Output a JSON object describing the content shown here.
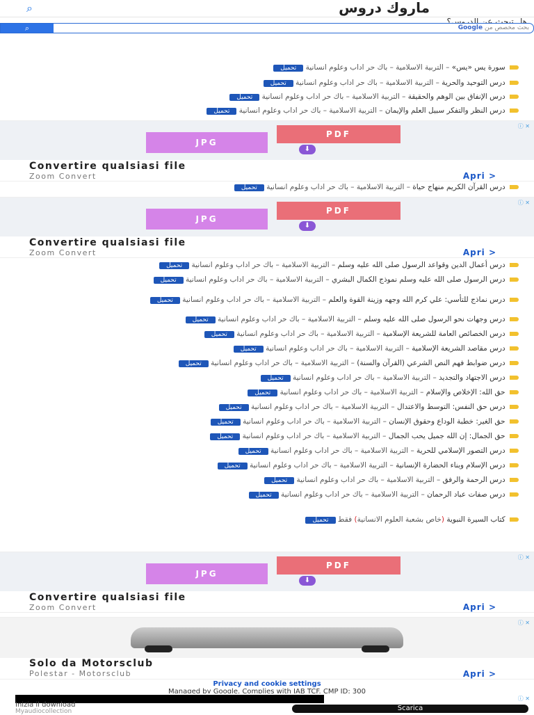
{
  "header": {
    "site_title": "ماروك دروس",
    "question": "هل تبحث عن الدروس؟",
    "search_placeholder": "بحث مخصص من",
    "search_brand": "Google",
    "search_button_icon": "search-icon"
  },
  "lessons_a": [
    {
      "title": "سورة يس «يس»",
      "meta": "– التربية الاسلامية – باك حر اداب وعلوم انسانية",
      "dl": "تحميل"
    },
    {
      "title": "درس التوحيد والحرية",
      "meta": "– التربية الاسلامية – باك حر اداب وعلوم انسانية",
      "dl": "تحميل"
    },
    {
      "title": "درس الإنفاق بين الوهم والحقيقة",
      "meta": "– التربية الاسلامية – باك حر اداب وعلوم انسانية",
      "dl": "تحميل"
    },
    {
      "title": "درس النظر والتفكر سبيل العلم والإيمان",
      "meta": "– التربية الاسلامية – باك حر اداب وعلوم انسانية",
      "dl": "تحميل"
    }
  ],
  "lesson_b": {
    "title": "درس القرآن الكريم منهاج حياة",
    "meta": "– التربية الاسلامية – باك حر اداب وعلوم انسانية",
    "dl": "تحميل"
  },
  "lessons_c": [
    {
      "title": "درس أعمال الدين وقواعد الرسول صلى الله عليه وسلم",
      "meta": "– التربية الاسلامية – باك حر اداب وعلوم انسانية",
      "dl": "تحميل"
    },
    {
      "title": "درس الرسول صلى الله عليه وسلم نموذج الكمال البشري",
      "meta": "– التربية الاسلامية – باك حر اداب وعلوم انسانية",
      "dl": "تحميل"
    },
    {
      "title": "درس نماذج للتأسي: علي كرم الله وجهه وزينة القوة والعلم",
      "meta": "– التربية الاسلامية – باك حر اداب وعلوم انسانية",
      "dl": "تحميل"
    },
    {
      "title": "درس وجهات نحو الرسول صلى الله عليه وسلم",
      "meta": "– التربية الاسلامية – باك حر اداب وعلوم انسانية",
      "dl": "تحميل"
    },
    {
      "title": "درس الخصائص العامة للشريعة الإسلامية",
      "meta": "– التربية الاسلامية – باك حر اداب وعلوم انسانية",
      "dl": "تحميل"
    },
    {
      "title": "درس مقاصد الشريعة الإسلامية",
      "meta": "– التربية الاسلامية – باك حر اداب وعلوم انسانية",
      "dl": "تحميل"
    },
    {
      "title": "درس ضوابط فهم النص الشرعي (القرآن والسنة)",
      "meta": "– التربية الاسلامية – باك حر اداب وعلوم انسانية",
      "dl": "تحميل"
    },
    {
      "title": "درس الاجتهاد والتجديد",
      "meta": "– التربية الاسلامية – باك حر اداب وعلوم انسانية",
      "dl": "تحميل"
    },
    {
      "title": "حق الله: الإخلاص والإسلام",
      "meta": "– التربية الاسلامية – باك حر اداب وعلوم انسانية",
      "dl": "تحميل"
    },
    {
      "title": "درس حق النفس: التوسط والاعتدال",
      "meta": "– التربية الاسلامية – باك حر اداب وعلوم انسانية",
      "dl": "تحميل"
    },
    {
      "title": "حق الغير: خطبة الوداع وحقوق الإنسان",
      "meta": "– التربية الاسلامية – باك حر اداب وعلوم انسانية",
      "dl": "تحميل"
    },
    {
      "title": "حق الجمال: إن الله جميل يحب الجمال",
      "meta": "– التربية الاسلامية – باك حر اداب وعلوم انسانية",
      "dl": "تحميل"
    },
    {
      "title": "درس التصور الإسلامي للحرية",
      "meta": "– التربية الاسلامية – باك حر اداب وعلوم انسانية",
      "dl": "تحميل"
    },
    {
      "title": "درس الإسلام وبناء الحضارة الإنسانية",
      "meta": "– التربية الاسلامية – باك حر اداب وعلوم انسانية",
      "dl": "تحميل"
    },
    {
      "title": "درس الرحمة والرفق",
      "meta": "– التربية الاسلامية – باك حر اداب وعلوم انسانية",
      "dl": "تحميل"
    },
    {
      "title": "درس صفات عباد الرحمان",
      "meta": "– التربية الاسلامية – باك حر اداب وعلوم انسانية",
      "dl": "تحميل"
    }
  ],
  "book": {
    "title": "كتاب السيرة النبوية",
    "note_open": "(",
    "note": "خاص بشعبة العلوم الانسانية",
    "note_close": ")",
    "suffix": "فقط",
    "dl": "تحميل"
  },
  "ad_convert": {
    "jpg": "JPG",
    "pdf": "PDF",
    "title": "Convertire qualsiasi file",
    "sub": "Zoom Convert",
    "open": "Apri  >",
    "adchoices": "ⓘ ✕"
  },
  "ad_car": {
    "title": "Solo da Motorsclub",
    "sub": "Polestar - Motorsclub",
    "open": "Apri  >",
    "adchoices": "ⓘ ✕"
  },
  "footer": {
    "privacy_link": "Privacy and cookie settings",
    "managed": "Managed by Google. Complies with IAB TCF. CMP ID: 300"
  },
  "bottom_ad": {
    "label": "Inizia il download",
    "sub": "Myaudiocollection",
    "button": "Scarica"
  }
}
